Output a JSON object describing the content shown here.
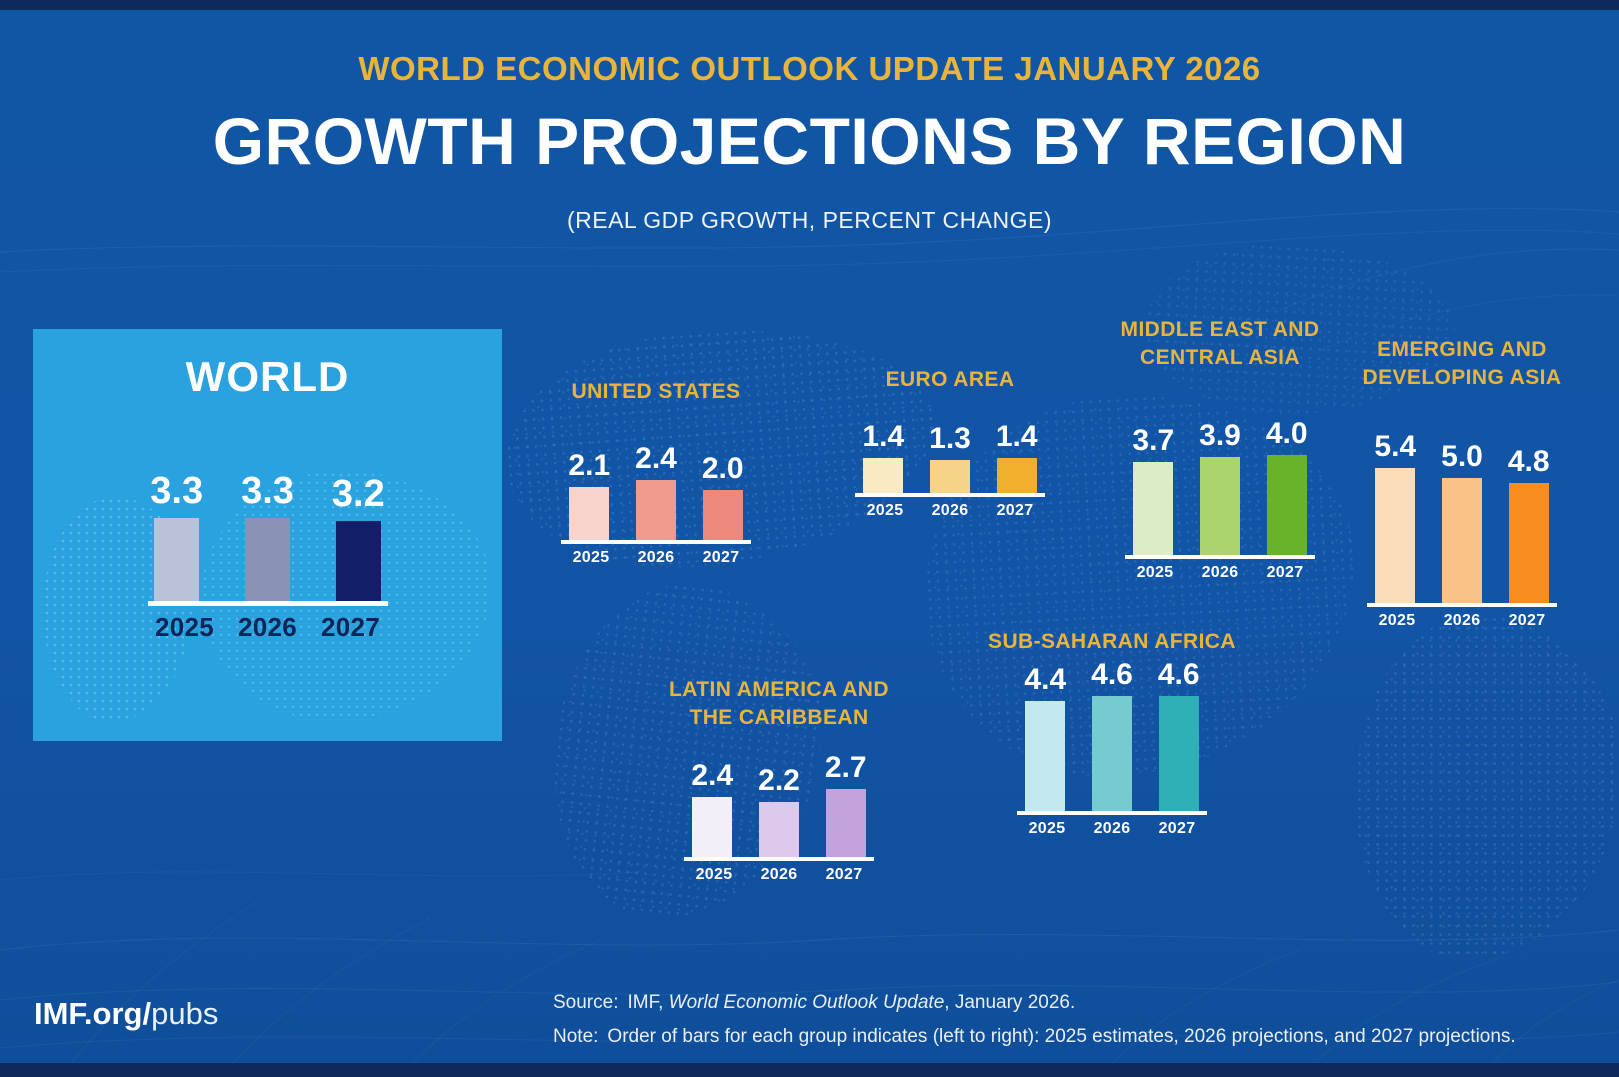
{
  "header": {
    "kicker": "WORLD ECONOMIC OUTLOOK UPDATE JANUARY 2026",
    "title": "GROWTH PROJECTIONS BY REGION",
    "subtitle": "(REAL GDP GROWTH, PERCENT CHANGE)"
  },
  "footer": {
    "brand_bold": "IMF.org/",
    "brand_light": "pubs",
    "source_label": "Source:",
    "source_pre": "IMF, ",
    "source_italic": "World Economic Outlook Update",
    "source_post": ", January 2026.",
    "note_label": "Note:",
    "note_text": "Order of bars for each group indicates (left to right): 2025 estimates, 2026 projections, and 2027 projections."
  },
  "colors": {
    "background": "#1254a6",
    "edge_strip": "#0e2a5c",
    "gold_accent": "#e9b43c",
    "world_panel_bg": "#29a2df",
    "baseline": "#ffffff",
    "world_year_text": "#0d2456"
  },
  "chart_data": {
    "type": "bar",
    "title": "GROWTH PROJECTIONS BY REGION",
    "subtitle": "(REAL GDP GROWTH, PERCENT CHANGE)",
    "kicker": "WORLD ECONOMIC OUTLOOK UPDATE JANUARY 2026",
    "unit": "percent change, real GDP growth",
    "categories": [
      "2025",
      "2026",
      "2027"
    ],
    "ylim": [
      0,
      5.5
    ],
    "grid": false,
    "legend_position": "none",
    "series": [
      {
        "name": "World",
        "label": "WORLD",
        "values": [
          3.3,
          3.3,
          3.2
        ],
        "bar_colors": [
          "#b9c2d9",
          "#8a92b5",
          "#101f66"
        ]
      },
      {
        "name": "United States",
        "label": "UNITED STATES",
        "values": [
          2.1,
          2.4,
          2.0
        ],
        "bar_colors": [
          "#f9d4cf",
          "#f19a8f",
          "#ec897c"
        ]
      },
      {
        "name": "Euro Area",
        "label": "EURO AREA",
        "values": [
          1.4,
          1.3,
          1.4
        ],
        "bar_colors": [
          "#faeac3",
          "#f6d388",
          "#f0af2f"
        ]
      },
      {
        "name": "Middle East and Central Asia",
        "label": "MIDDLE EAST AND\nCENTRAL ASIA",
        "values": [
          3.7,
          3.9,
          4.0
        ],
        "bar_colors": [
          "#dcecc6",
          "#a9d46e",
          "#69b32a"
        ]
      },
      {
        "name": "Emerging and Developing Asia",
        "label": "EMERGING AND\nDEVELOPING ASIA",
        "values": [
          5.4,
          5.0,
          4.8
        ],
        "bar_colors": [
          "#fbdcb9",
          "#f9c287",
          "#f78d1f"
        ]
      },
      {
        "name": "Latin America and the Caribbean",
        "label": "LATIN AMERICA AND\nTHE CARIBBEAN",
        "values": [
          2.4,
          2.2,
          2.7
        ],
        "bar_colors": [
          "#f2eff8",
          "#dcc9ec",
          "#c4a3dc"
        ]
      },
      {
        "name": "Sub-Saharan Africa",
        "label": "SUB-SAHARAN AFRICA",
        "values": [
          4.4,
          4.6,
          4.6
        ],
        "bar_colors": [
          "#c3e8ed",
          "#76cbd1",
          "#2eb0b6"
        ]
      }
    ],
    "source": "Source: IMF, World Economic Outlook Update, January 2026.",
    "note": "Order of bars for each group indicates (left to right): 2025 estimates, 2026 projections, and 2027 projections."
  }
}
